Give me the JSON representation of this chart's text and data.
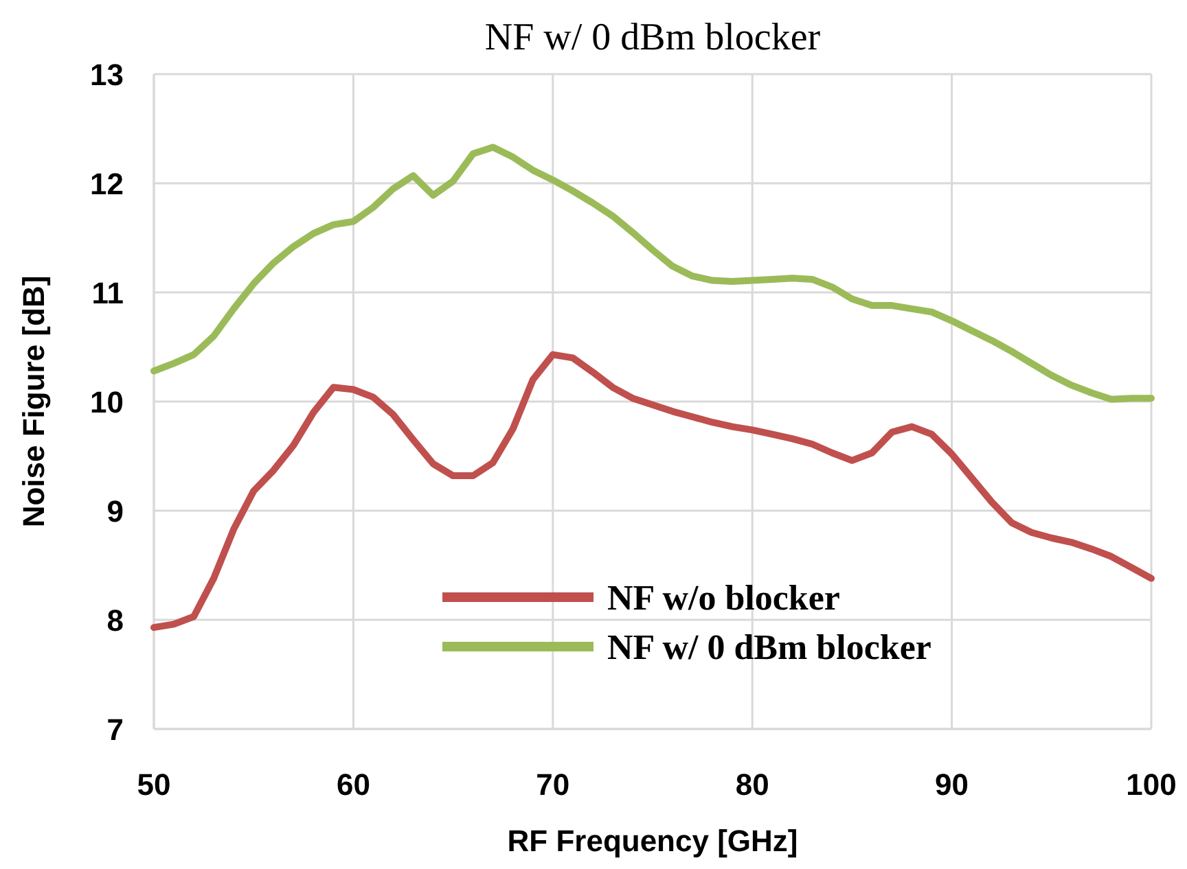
{
  "chart_data": {
    "type": "line",
    "title": "NF w/ 0 dBm blocker",
    "xlabel": "RF Frequency [GHz]",
    "ylabel": "Noise Figure [dB]",
    "x": [
      50,
      51,
      52,
      53,
      54,
      55,
      56,
      57,
      58,
      59,
      60,
      61,
      62,
      63,
      64,
      65,
      66,
      67,
      68,
      69,
      70,
      71,
      72,
      73,
      74,
      75,
      76,
      77,
      78,
      79,
      80,
      81,
      82,
      83,
      84,
      85,
      86,
      87,
      88,
      89,
      90,
      91,
      92,
      93,
      94,
      95,
      96,
      97,
      98,
      99,
      100
    ],
    "series": [
      {
        "name": "NF w/o blocker",
        "color": "#c0504d",
        "values": [
          7.93,
          7.96,
          8.03,
          8.38,
          8.83,
          9.18,
          9.37,
          9.6,
          9.9,
          10.13,
          10.11,
          10.04,
          9.88,
          9.65,
          9.43,
          9.32,
          9.32,
          9.44,
          9.75,
          10.2,
          10.43,
          10.4,
          10.27,
          10.13,
          10.03,
          9.97,
          9.91,
          9.86,
          9.81,
          9.77,
          9.74,
          9.7,
          9.66,
          9.61,
          9.53,
          9.46,
          9.53,
          9.72,
          9.77,
          9.7,
          9.52,
          9.3,
          9.08,
          8.89,
          8.8,
          8.75,
          8.71,
          8.65,
          8.58,
          8.48,
          8.38
        ]
      },
      {
        "name": "NF w/ 0 dBm blocker",
        "color": "#9bbb59",
        "values": [
          10.28,
          10.35,
          10.43,
          10.6,
          10.85,
          11.08,
          11.27,
          11.42,
          11.54,
          11.62,
          11.65,
          11.78,
          11.95,
          12.07,
          11.89,
          12.02,
          12.27,
          12.33,
          12.24,
          12.12,
          12.03,
          11.93,
          11.82,
          11.7,
          11.55,
          11.39,
          11.24,
          11.15,
          11.11,
          11.1,
          11.11,
          11.12,
          11.13,
          11.12,
          11.05,
          10.94,
          10.88,
          10.88,
          10.85,
          10.82,
          10.74,
          10.65,
          10.56,
          10.46,
          10.35,
          10.24,
          10.15,
          10.08,
          10.02,
          10.03,
          10.03
        ]
      }
    ],
    "xlim": [
      50,
      100
    ],
    "xticks": [
      50,
      60,
      70,
      80,
      90,
      100
    ],
    "ylim": [
      7,
      13
    ],
    "yticks": [
      7,
      8,
      9,
      10,
      11,
      12,
      13
    ],
    "grid": true,
    "legend": "bottom",
    "marker": "none",
    "line_style": "solid"
  }
}
